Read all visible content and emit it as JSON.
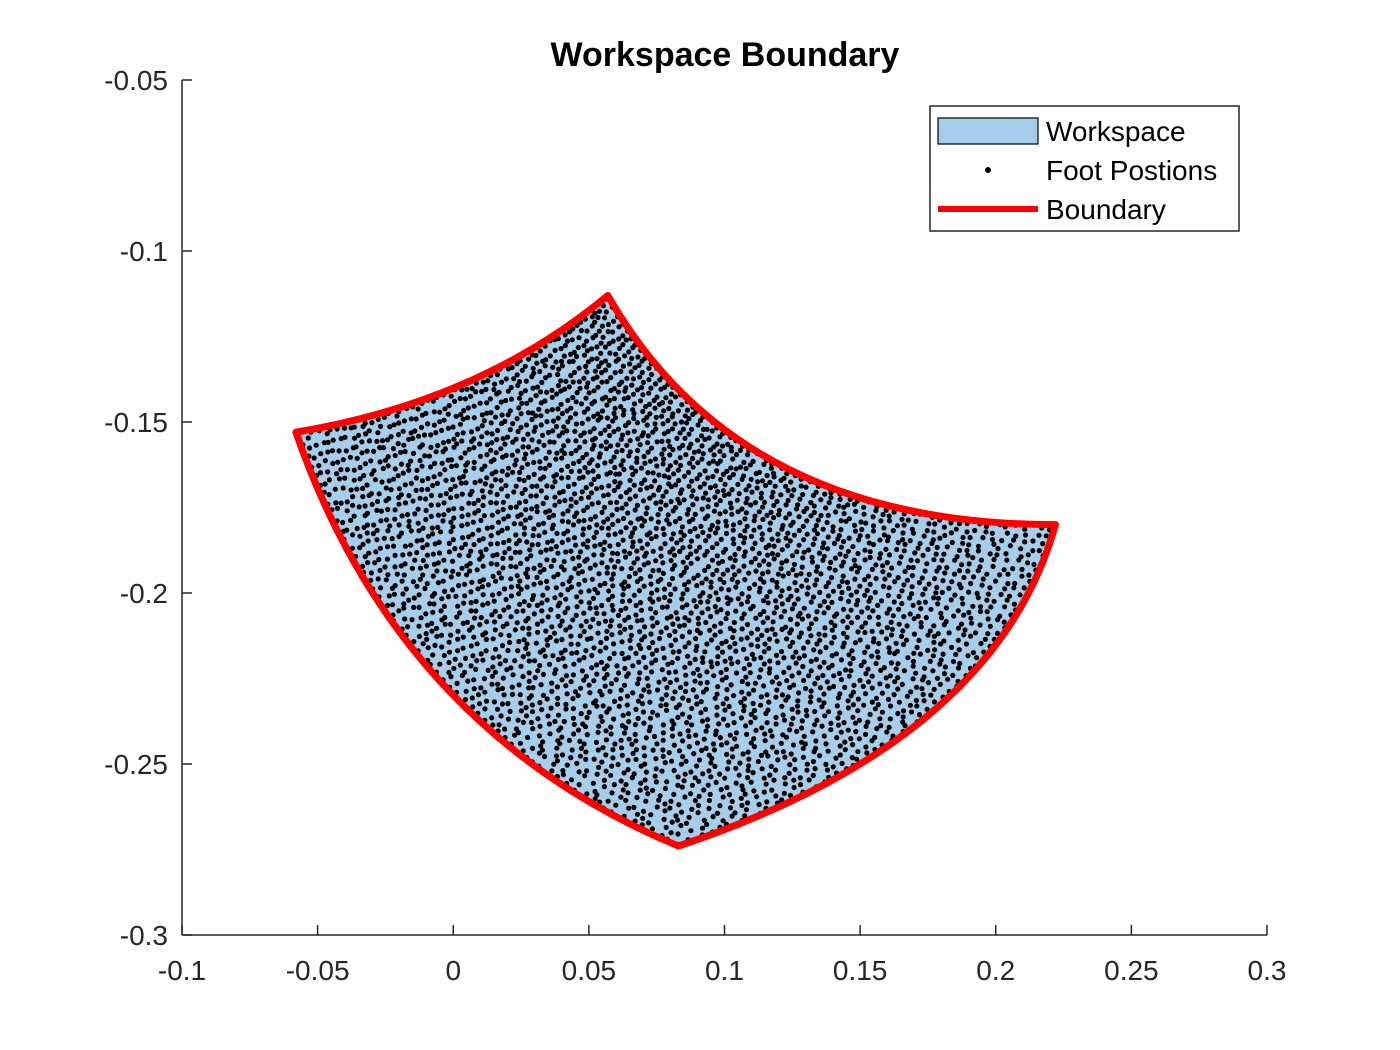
{
  "chart_data": {
    "type": "scatter",
    "title": "Workspace Boundary",
    "xlabel": "",
    "ylabel": "",
    "xlim": [
      -0.1,
      0.3
    ],
    "ylim": [
      -0.3,
      -0.05
    ],
    "xticks": [
      "-0.1",
      "-0.05",
      "0",
      "0.05",
      "0.1",
      "0.15",
      "0.2",
      "0.25",
      "0.3"
    ],
    "yticks": [
      "-0.05",
      "-0.1",
      "-0.15",
      "-0.2",
      "-0.25",
      "-0.3"
    ],
    "legend_position": "top-right",
    "grid": false,
    "colors": {
      "workspace_fill": "#a6cde9",
      "points": "#000000",
      "boundary": "#ff0000",
      "axis": "#262626"
    },
    "series": [
      {
        "name": "Workspace",
        "kind": "filled-region",
        "corners": [
          [
            -0.058,
            -0.153
          ],
          [
            0.057,
            -0.113
          ],
          [
            0.222,
            -0.18
          ],
          [
            0.083,
            -0.274
          ]
        ]
      },
      {
        "name": "Foot Postions",
        "kind": "points",
        "grid_size": [
          60,
          60
        ]
      },
      {
        "name": "Boundary",
        "kind": "line",
        "curves": [
          {
            "from": [
              -0.058,
              -0.153
            ],
            "control": [
              0.01,
              -0.144
            ],
            "to": [
              0.057,
              -0.113
            ]
          },
          {
            "from": [
              0.057,
              -0.113
            ],
            "control": [
              0.105,
              -0.18
            ],
            "to": [
              0.222,
              -0.18
            ]
          },
          {
            "from": [
              0.222,
              -0.18
            ],
            "control": [
              0.2,
              -0.243
            ],
            "to": [
              0.083,
              -0.274
            ]
          },
          {
            "from": [
              0.083,
              -0.274
            ],
            "control": [
              -0.02,
              -0.24
            ],
            "to": [
              -0.058,
              -0.153
            ]
          }
        ]
      }
    ]
  }
}
